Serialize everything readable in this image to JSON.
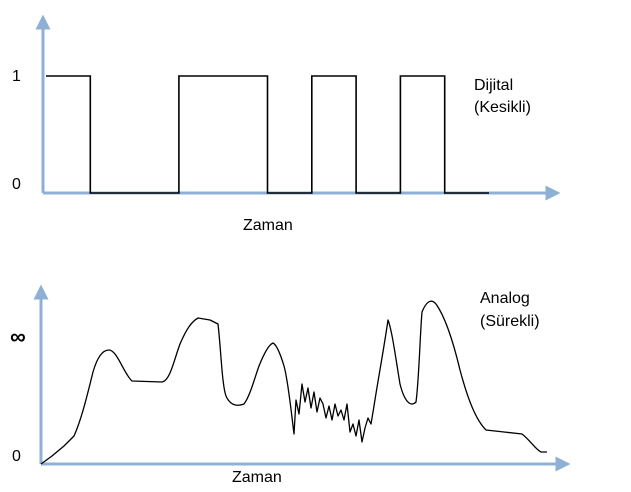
{
  "digital": {
    "label_line1": "Dijital",
    "label_line2": "(Kesikli)",
    "y_tick_high": "1",
    "y_tick_low": "0",
    "x_axis_label": "Zaman",
    "axis_color": "#8eb0d6",
    "levels": [
      1,
      0,
      1,
      0,
      1,
      0,
      1,
      0
    ],
    "segments": [
      [
        0,
        1
      ],
      [
        1,
        3
      ],
      [
        3,
        5
      ],
      [
        5,
        6
      ],
      [
        6,
        7
      ],
      [
        7,
        8
      ],
      [
        8,
        9
      ],
      [
        9,
        10
      ]
    ]
  },
  "analog": {
    "label_line1": "Analog",
    "label_line2": "(Sürekli)",
    "y_tick_high": "∞",
    "y_tick_low": "0",
    "x_axis_label": "Zaman",
    "axis_color": "#8eb0d6"
  }
}
